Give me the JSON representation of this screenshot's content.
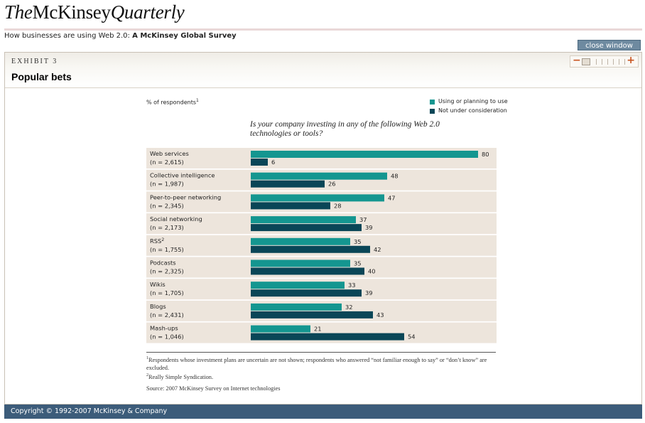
{
  "header": {
    "logo_the": "The",
    "logo_mckinsey": "McKinsey",
    "logo_quarterly": "Quarterly",
    "subtitle_prefix": "How businesses are using Web 2.0:",
    "subtitle_bold": "A McKinsey Global Survey",
    "close_label": "close window"
  },
  "panel": {
    "exhibit": "EXHIBIT 3",
    "title": "Popular bets"
  },
  "zoom": {
    "minus_icon": "minus-icon",
    "plus_icon": "plus-icon",
    "minus": "−",
    "plus": "+"
  },
  "chart_data": {
    "type": "bar",
    "orientation": "horizontal",
    "ylabel": "% of respondents",
    "ylabel_sup": "1",
    "question": "Is your company investing in any of the following Web 2.0 technologies or tools?",
    "series": [
      {
        "name": "Using or planning to use",
        "color": "#149690",
        "values": [
          80,
          48,
          47,
          37,
          35,
          35,
          33,
          32,
          21
        ]
      },
      {
        "name": "Not under consideration",
        "color": "#0a4657",
        "values": [
          6,
          26,
          28,
          39,
          42,
          40,
          39,
          43,
          54
        ]
      }
    ],
    "categories": [
      {
        "name": "Web services",
        "n": "(n = 2,615)",
        "sup": ""
      },
      {
        "name": "Collective intelligence",
        "n": "(n = 1,987)",
        "sup": ""
      },
      {
        "name": "Peer-to-peer networking",
        "n": "(n = 2,345)",
        "sup": ""
      },
      {
        "name": "Social networking",
        "n": "(n = 2,173)",
        "sup": ""
      },
      {
        "name": "RSS",
        "n": "(n = 1,755)",
        "sup": "2"
      },
      {
        "name": "Podcasts",
        "n": "(n = 2,325)",
        "sup": ""
      },
      {
        "name": "Wikis",
        "n": "(n = 1,705)",
        "sup": ""
      },
      {
        "name": "Blogs",
        "n": "(n = 2,431)",
        "sup": ""
      },
      {
        "name": "Mash-ups",
        "n": "(n = 1,046)",
        "sup": ""
      }
    ],
    "xlim": [
      0,
      80
    ],
    "row_band_color": "#ede5dc",
    "legend_position": "top-right"
  },
  "footnotes": {
    "fn1_sup": "1",
    "fn1": "Respondents whose investment plans are uncertain are not shown; respondents who answered “not familiar enough to say” or “don’t know” are excluded.",
    "fn2_sup": "2",
    "fn2": "Really Simple Syndication.",
    "source": "Source: 2007 McKinsey Survey on Internet technologies"
  },
  "footer": {
    "copyright": "Copyright © 1992-2007 McKinsey & Company"
  }
}
